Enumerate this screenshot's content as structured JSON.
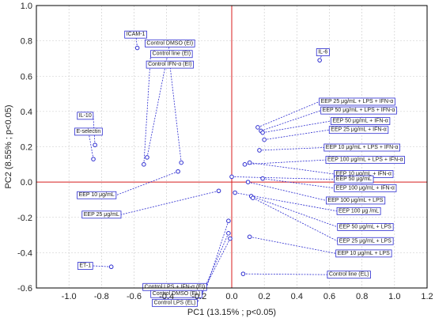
{
  "chart_data": {
    "type": "scatter",
    "xlabel": "PC1 (13.15% ; p<0.05)",
    "ylabel": "PC2 (8.55% ; p<0.05)",
    "xlim": [
      -1.2,
      1.2
    ],
    "ylim": [
      -0.6,
      1.0
    ],
    "x_ticks": [
      -1.0,
      -0.8,
      -0.6,
      -0.4,
      -0.2,
      0.0,
      0.2,
      0.4,
      0.6,
      0.8,
      1.0,
      1.2
    ],
    "y_ticks": [
      -0.6,
      -0.4,
      -0.2,
      0.0,
      0.2,
      0.4,
      0.6,
      0.8,
      1.0
    ],
    "x_tick_labels": [
      "-1.0",
      "-0.8",
      "-0.6",
      "-0.4",
      "-0.2",
      "0.0",
      "0.2",
      "0.4",
      "0.6",
      "0.8",
      "1.0",
      "1.2"
    ],
    "y_tick_labels": [
      "-0.6",
      "-0.4",
      "-0.2",
      "0.0",
      "0.2",
      "0.4",
      "0.6",
      "0.8",
      "1.0"
    ],
    "grid": true,
    "points": [
      {
        "name": "ICAM-1",
        "x": -0.58,
        "y": 0.76
      },
      {
        "name": "IL-6",
        "x": 0.54,
        "y": 0.69
      },
      {
        "name": "IL-10",
        "x": -0.84,
        "y": 0.21
      },
      {
        "name": "E-selectin",
        "x": -0.85,
        "y": 0.13
      },
      {
        "name": "Control DMSO (EI)",
        "x": -0.52,
        "y": 0.14
      },
      {
        "name": "Control line (EI)",
        "x": -0.54,
        "y": 0.1
      },
      {
        "name": "Control IFN-α (EI)",
        "x": -0.31,
        "y": 0.11
      },
      {
        "name": "EEP 10 μg/mL",
        "x": -0.33,
        "y": 0.06
      },
      {
        "name": "EEP 25 μg/mL",
        "x": -0.08,
        "y": -0.05
      },
      {
        "name": "ET-1",
        "x": -0.74,
        "y": -0.48
      },
      {
        "name": "Control LPS + IFN-α (EI)",
        "x": -0.02,
        "y": -0.22
      },
      {
        "name": "Control DMSO (EL)",
        "x": -0.02,
        "y": -0.29
      },
      {
        "name": "Control LPS (EL)",
        "x": -0.01,
        "y": -0.32
      },
      {
        "name": "Control line (EL)",
        "x": 0.07,
        "y": -0.52
      },
      {
        "name": "EEP 25 μg/mL + LPS + IFN-α",
        "x": 0.16,
        "y": 0.31
      },
      {
        "name": "EEP 50 μg/mL + LPS + IFN-α",
        "x": 0.18,
        "y": 0.29
      },
      {
        "name": "EEP 50 μg/mL + IFN-α",
        "x": 0.19,
        "y": 0.28
      },
      {
        "name": "EEP 25 μg/mL + IFN-α",
        "x": 0.2,
        "y": 0.24
      },
      {
        "name": "EEP 10 μg/mL + LPS + IFN-α",
        "x": 0.17,
        "y": 0.18
      },
      {
        "name": "EEP 100 μg/mL + LPS + IFN-α",
        "x": 0.08,
        "y": 0.1
      },
      {
        "name": "EEP 10 μg/mL + IFN-α",
        "x": 0.11,
        "y": 0.11
      },
      {
        "name": "EEP 50 μg/mL",
        "x": 0.0,
        "y": 0.03
      },
      {
        "name": "EEP 100 μg/mL + IFN-α",
        "x": 0.19,
        "y": 0.02
      },
      {
        "name": "EEP 100 μg/mL + LPS",
        "x": 0.1,
        "y": 0.0
      },
      {
        "name": "EEP 100 μg /mL",
        "x": 0.02,
        "y": -0.06
      },
      {
        "name": "EEP 50 μg/mL + LPS",
        "x": 0.12,
        "y": -0.08
      },
      {
        "name": "EEP 25 μg/mL + LPS",
        "x": 0.13,
        "y": -0.09
      },
      {
        "name": "EEP 10 μg/mL + LPS",
        "x": 0.11,
        "y": -0.31
      }
    ],
    "label_positions": [
      {
        "x": -0.59,
        "y": 0.84
      },
      {
        "x": 0.56,
        "y": 0.74
      },
      {
        "x": -0.9,
        "y": 0.38
      },
      {
        "x": -0.88,
        "y": 0.29
      },
      {
        "x": -0.38,
        "y": 0.79
      },
      {
        "x": -0.37,
        "y": 0.73
      },
      {
        "x": -0.38,
        "y": 0.67
      },
      {
        "x": -0.83,
        "y": -0.07
      },
      {
        "x": -0.8,
        "y": -0.18
      },
      {
        "x": -0.9,
        "y": -0.47
      },
      {
        "x": -0.35,
        "y": -0.59
      },
      {
        "x": -0.34,
        "y": -0.63
      },
      {
        "x": -0.35,
        "y": -0.68
      },
      {
        "x": 0.72,
        "y": -0.52
      },
      {
        "x": 0.77,
        "y": 0.46
      },
      {
        "x": 0.78,
        "y": 0.41
      },
      {
        "x": 0.79,
        "y": 0.35
      },
      {
        "x": 0.78,
        "y": 0.3
      },
      {
        "x": 0.8,
        "y": 0.2
      },
      {
        "x": 0.82,
        "y": 0.13
      },
      {
        "x": 0.81,
        "y": 0.05
      },
      {
        "x": 0.75,
        "y": 0.02
      },
      {
        "x": 0.82,
        "y": -0.03
      },
      {
        "x": 0.76,
        "y": -0.1
      },
      {
        "x": 0.78,
        "y": -0.16
      },
      {
        "x": 0.82,
        "y": -0.25
      },
      {
        "x": 0.82,
        "y": -0.33
      },
      {
        "x": 0.81,
        "y": -0.4
      }
    ]
  }
}
